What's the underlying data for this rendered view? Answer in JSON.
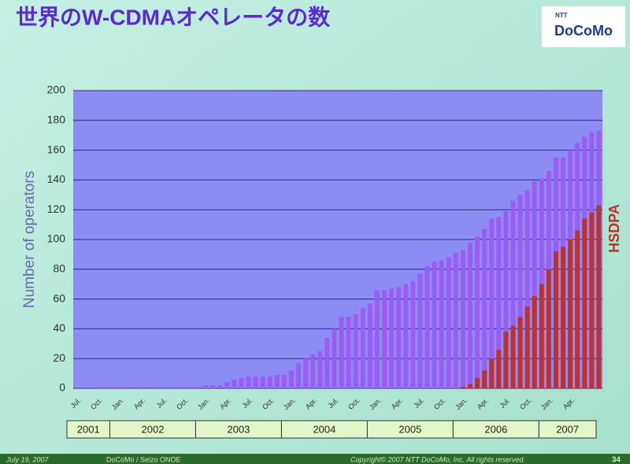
{
  "header": {
    "title": "世界のW-CDMAオペレータの数",
    "logo_top": "NTT",
    "logo": "DoCoMo"
  },
  "footer": {
    "date": "July 19, 2007",
    "author": "DoCoMo / Seizo ONOE",
    "copyright": "Copyright© 2007 NTT DoCoMo, Inc. All rights reserved.",
    "page": "34"
  },
  "chart_data": {
    "type": "bar",
    "y_label": "Number of operators",
    "categories": [
      "Jul.",
      null,
      null,
      "Oct.",
      null,
      null,
      "Jan.",
      null,
      null,
      "Apr.",
      null,
      null,
      "Jul.",
      null,
      null,
      "Oct.",
      null,
      null,
      "Jan.",
      null,
      null,
      "Apr.",
      null,
      null,
      "Jul.",
      null,
      null,
      "Oct.",
      null,
      null,
      "Jan.",
      null,
      null,
      "Apr.",
      null,
      null,
      "Jul.",
      null,
      null,
      "Oct.",
      null,
      null,
      "Jan.",
      null,
      null,
      "Apr.",
      null,
      null,
      "Jul.",
      null,
      null,
      "Oct.",
      null,
      null,
      "Jan.",
      null,
      null,
      "Apr.",
      null,
      null,
      "Jul.",
      null,
      null,
      "Oct.",
      null,
      null,
      "Jan.",
      null,
      null,
      "Apr.",
      null,
      null,
      null,
      null
    ],
    "years": [
      "2001",
      "2002",
      "2003",
      "2004",
      "2005",
      "2006",
      "2007"
    ],
    "series": [
      {
        "color": "#9b5cf2",
        "values": [
          0,
          0,
          0,
          1,
          1,
          1,
          1,
          1,
          1,
          1,
          1,
          1,
          1,
          1,
          1,
          1,
          1,
          1,
          2,
          2,
          2,
          4,
          6,
          7,
          8,
          8,
          8,
          8,
          9,
          9,
          12,
          17,
          20,
          23,
          25,
          34,
          40,
          48,
          48,
          50,
          54,
          57,
          66,
          66,
          67,
          68,
          70,
          72,
          77,
          82,
          85,
          86,
          88,
          91,
          93,
          98,
          102,
          107,
          114,
          115,
          119,
          126,
          130,
          133,
          139,
          141,
          146,
          155,
          155,
          160,
          165,
          169,
          172,
          173
        ]
      },
      {
        "name": "HSDPA",
        "color": "#c0302c",
        "values": [
          0,
          0,
          0,
          0,
          0,
          0,
          0,
          0,
          0,
          0,
          0,
          0,
          0,
          0,
          0,
          0,
          0,
          0,
          0,
          0,
          0,
          0,
          0,
          0,
          0,
          0,
          0,
          0,
          0,
          0,
          0,
          0,
          0,
          0,
          0,
          0,
          0,
          0,
          0,
          0,
          0,
          0,
          0,
          0,
          0,
          0,
          0,
          0,
          0,
          0,
          0,
          0,
          0,
          0,
          1,
          3,
          7,
          12,
          20,
          26,
          38,
          42,
          48,
          55,
          62,
          70,
          80,
          92,
          95,
          100,
          106,
          114,
          118,
          123
        ]
      }
    ],
    "ylim": [
      0,
      200
    ],
    "yticks": [
      0,
      20,
      40,
      60,
      80,
      100,
      120,
      140,
      160,
      180,
      200
    ],
    "grid": true
  }
}
